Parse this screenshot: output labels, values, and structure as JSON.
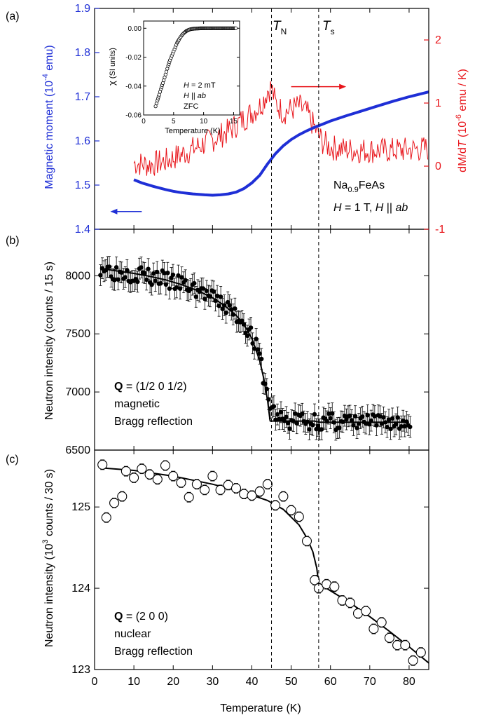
{
  "figure": {
    "panel_labels": [
      "(a)",
      "(b)",
      "(c)"
    ],
    "x_axis": {
      "label": "Temperature (K)",
      "range": [
        0,
        85
      ],
      "ticks": [
        0,
        10,
        20,
        30,
        40,
        50,
        60,
        70,
        80
      ],
      "tick_labels": [
        "0",
        "10",
        "20",
        "30",
        "40",
        "50",
        "60",
        "70",
        "80"
      ]
    },
    "transitions": {
      "TN": 45,
      "Ts": 57
    },
    "colors": {
      "moment": "#1f2fd6",
      "derivative": "#e8141a",
      "data": "#000000"
    }
  },
  "chart_data": [
    {
      "panel": "a",
      "type": "line",
      "sample_annotation": {
        "prefix": "Na",
        "subscript": "0.9",
        "suffix": "FeAs"
      },
      "field_annotation": {
        "h": "H",
        "eq": " = 1 T, ",
        "h2": "H",
        "par": " || ",
        "ab": "ab"
      },
      "transition_labels": {
        "TN_main": "T",
        "TN_sub": "N",
        "Ts_main": "T",
        "Ts_sub": "s"
      },
      "y_left": {
        "label_main": "Magnetic moment (10",
        "label_sup": "-4",
        "label_end": " emu)",
        "range": [
          1.4,
          1.9
        ],
        "ticks": [
          1.4,
          1.5,
          1.6,
          1.7,
          1.8,
          1.9
        ],
        "tick_labels": [
          "1.4",
          "1.5",
          "1.6",
          "1.7",
          "1.8",
          "1.9"
        ]
      },
      "y_right": {
        "label_a": "dM/d",
        "label_b": "T",
        "label_c": " (10",
        "label_sup": "-6",
        "label_d": " emu / K)",
        "range": [
          -1,
          2.5
        ],
        "ticks": [
          -1,
          0,
          1,
          2
        ],
        "tick_labels": [
          "-1",
          "0",
          "1",
          "2"
        ]
      },
      "series": [
        {
          "axis": "left",
          "color": "#1f2fd6",
          "x": [
            10,
            12,
            15,
            18,
            20,
            22,
            25,
            28,
            30,
            32,
            34,
            36,
            38,
            40,
            42,
            44,
            46,
            48,
            50,
            52,
            54,
            56,
            58,
            60,
            64,
            68,
            72,
            76,
            80,
            85
          ],
          "y": [
            1.512,
            1.505,
            1.497,
            1.49,
            1.486,
            1.483,
            1.48,
            1.478,
            1.477,
            1.478,
            1.48,
            1.484,
            1.492,
            1.505,
            1.522,
            1.548,
            1.571,
            1.589,
            1.603,
            1.614,
            1.623,
            1.631,
            1.638,
            1.645,
            1.657,
            1.668,
            1.679,
            1.69,
            1.7,
            1.711
          ]
        },
        {
          "axis": "right",
          "color": "#e8141a",
          "x": [
            10,
            14,
            18,
            22,
            26,
            30,
            34,
            38,
            40,
            42,
            43,
            44,
            45,
            46,
            48,
            50,
            52,
            54,
            56,
            58,
            60,
            64,
            68,
            72,
            76,
            80,
            85
          ],
          "y": [
            0.05,
            0.02,
            0.08,
            0.18,
            0.3,
            0.42,
            0.55,
            0.75,
            0.85,
            0.95,
            1.05,
            1.2,
            1.25,
            1.0,
            0.85,
            0.9,
            0.95,
            0.85,
            0.6,
            0.38,
            0.3,
            0.26,
            0.25,
            0.25,
            0.25,
            0.26,
            0.28
          ]
        }
      ],
      "arrows": {
        "left_arrow_y": 1.44,
        "left_arrow_x": [
          4,
          12
        ],
        "right_arrow_y": 1.26,
        "right_arrow_x": [
          50,
          64
        ]
      },
      "inset": {
        "xlabel": "Temperature (K)",
        "ylabel_chi": "χ",
        "ylabel_rest": " (SI units)",
        "x_range": [
          0,
          16
        ],
        "y_range": [
          -0.06,
          0.005
        ],
        "x_ticks": [
          0,
          5,
          10,
          15
        ],
        "x_tick_labels": [
          "0",
          "5",
          "10",
          "15"
        ],
        "y_ticks": [
          0.0,
          -0.02,
          -0.04,
          -0.06
        ],
        "y_tick_labels": [
          "0.00",
          "-0.02",
          "-0.04",
          "-0.06"
        ],
        "annot_1a": "H",
        "annot_1b": " = 2 mT",
        "annot_2a": "H",
        "annot_2b": " || ",
        "annot_2c": "ab",
        "annot_3": "ZFC",
        "x": [
          2.0,
          2.3,
          2.6,
          2.9,
          3.2,
          3.5,
          3.8,
          4.1,
          4.4,
          4.7,
          5.0,
          5.3,
          5.6,
          5.9,
          6.2,
          6.5,
          6.8,
          7.1,
          7.4,
          7.7,
          8.0,
          8.4,
          8.8,
          9.2,
          9.8,
          10.5,
          11.5,
          12.5,
          13.5,
          14.5,
          15.5
        ],
        "y": [
          -0.054,
          -0.05,
          -0.046,
          -0.042,
          -0.038,
          -0.034,
          -0.03,
          -0.026,
          -0.022,
          -0.019,
          -0.016,
          -0.013,
          -0.01,
          -0.0078,
          -0.0058,
          -0.0042,
          -0.003,
          -0.002,
          -0.0013,
          -0.0008,
          -0.0005,
          -0.0003,
          -0.0002,
          -0.0001,
          0.0,
          0.0,
          0.0,
          0.0,
          0.0,
          0.0,
          0.0
        ]
      }
    },
    {
      "panel": "b",
      "type": "scatter",
      "ylabel": "Neutron intensity (counts / 15 s)",
      "ylim": [
        6500,
        8400
      ],
      "y_ticks": [
        6500,
        7000,
        7500,
        8000
      ],
      "y_tick_labels": [
        "6500",
        "7000",
        "7500",
        "8000"
      ],
      "annotation": {
        "q_bold": "Q",
        "q_rest": " = (1/2 0 1/2)",
        "line2": "magnetic",
        "line3": "Bragg reflection"
      },
      "fit_x": [
        2,
        6,
        10,
        14,
        18,
        22,
        26,
        30,
        33,
        36,
        38,
        40,
        42,
        43,
        44,
        44.6,
        44.7,
        50,
        56,
        57,
        62,
        68,
        74,
        80
      ],
      "fit_y": [
        8060,
        8040,
        8020,
        7995,
        7965,
        7925,
        7875,
        7810,
        7745,
        7660,
        7580,
        7460,
        7270,
        7120,
        6930,
        6760,
        6750,
        6750,
        6750,
        6740,
        6740,
        6740,
        6740,
        6740
      ],
      "points_x": [
        2,
        4,
        6,
        8,
        10,
        12,
        14,
        16,
        18,
        20,
        22,
        24,
        26,
        28,
        30,
        32,
        34,
        36,
        38,
        40,
        42,
        44,
        46,
        48,
        50,
        52,
        54,
        56,
        58,
        60,
        62,
        64,
        66,
        68,
        70,
        72,
        74,
        76,
        78,
        80
      ],
      "points_y": [
        8080,
        8050,
        8020,
        8040,
        8000,
        8030,
        7980,
        7990,
        7960,
        7940,
        7930,
        7900,
        7880,
        7850,
        7800,
        7770,
        7720,
        7660,
        7600,
        7480,
        7300,
        6950,
        6800,
        6760,
        6740,
        6780,
        6720,
        6760,
        6730,
        6750,
        6740,
        6760,
        6720,
        6750,
        6740,
        6730,
        6750,
        6740,
        6720,
        6760
      ],
      "error_y": [
        90,
        90,
        90,
        90,
        90,
        90,
        90,
        90,
        90,
        90,
        90,
        90,
        90,
        90,
        90,
        90,
        90,
        90,
        90,
        90,
        90,
        90,
        90,
        90,
        90,
        90,
        90,
        90,
        90,
        90,
        90,
        90,
        90,
        90,
        90,
        90,
        90,
        90,
        90,
        90
      ]
    },
    {
      "panel": "c",
      "type": "scatter",
      "ylabel_a": "Neutron intensity (10",
      "ylabel_sup": "3",
      "ylabel_b": " counts / 30 s)",
      "ylim": [
        123,
        125.7
      ],
      "y_ticks": [
        123,
        124,
        125
      ],
      "y_tick_labels": [
        "123",
        "124",
        "125"
      ],
      "annotation": {
        "q_bold": "Q",
        "q_rest": " = (2 0 0)",
        "line2": "nuclear",
        "line3": "Bragg reflection"
      },
      "fit_x": [
        2,
        10,
        20,
        30,
        38,
        44,
        48,
        52,
        54,
        55.5,
        56.5,
        57,
        60,
        65,
        70,
        75,
        80,
        85
      ],
      "fit_y": [
        125.48,
        125.45,
        125.38,
        125.28,
        125.18,
        125.08,
        124.97,
        124.78,
        124.62,
        124.45,
        124.25,
        124.06,
        123.97,
        123.82,
        123.65,
        123.47,
        123.28,
        123.08
      ],
      "points_x": [
        2,
        3,
        5,
        7,
        8,
        10,
        12,
        14,
        16,
        18,
        20,
        22,
        24,
        26,
        28,
        30,
        32,
        34,
        36,
        38,
        40,
        42,
        44,
        46,
        48,
        50,
        52,
        54,
        56,
        57,
        59,
        61,
        63,
        65,
        67,
        69,
        71,
        73,
        75,
        77,
        79,
        81,
        83
      ],
      "points_y": [
        125.52,
        124.87,
        125.05,
        125.13,
        125.44,
        125.36,
        125.47,
        125.4,
        125.34,
        125.51,
        125.38,
        125.3,
        125.12,
        125.28,
        125.21,
        125.38,
        125.21,
        125.27,
        125.23,
        125.16,
        125.14,
        125.19,
        125.28,
        125.02,
        125.13,
        124.96,
        124.88,
        124.58,
        124.1,
        124.0,
        124.05,
        124.02,
        123.85,
        123.82,
        123.69,
        123.72,
        123.5,
        123.58,
        123.39,
        123.3,
        123.3,
        123.11,
        123.21
      ],
      "error_y": [
        0.06,
        0.06,
        0.06,
        0.06,
        0.06,
        0.06,
        0.06,
        0.06,
        0.06,
        0.06,
        0.06,
        0.06,
        0.06,
        0.06,
        0.06,
        0.06,
        0.06,
        0.06,
        0.06,
        0.06,
        0.06,
        0.06,
        0.06,
        0.06,
        0.06,
        0.06,
        0.06,
        0.06,
        0.06,
        0.06,
        0.06,
        0.06,
        0.06,
        0.06,
        0.06,
        0.06,
        0.06,
        0.06,
        0.06,
        0.06,
        0.06,
        0.06,
        0.06
      ]
    }
  ]
}
